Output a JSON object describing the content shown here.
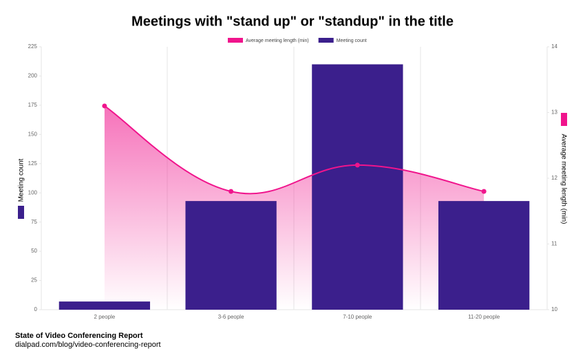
{
  "chart_data": {
    "type": "bar",
    "title": "Meetings with \"stand up\" or \"standup\" in the title",
    "categories": [
      "2 people",
      "3-6 people",
      "7-10 people",
      "11-20 people"
    ],
    "series": [
      {
        "name": "Average meeting length (min)",
        "type": "line",
        "axis": "y2",
        "color": "#f0148c",
        "values": [
          13.1,
          11.8,
          12.2,
          11.8
        ]
      },
      {
        "name": "Meeting count",
        "type": "bar",
        "color": "#3b1f8c",
        "values": [
          7,
          93,
          210,
          93
        ]
      }
    ],
    "y_label": "Meeting count",
    "y2_label": "Average meeting length (min)",
    "ylim": [
      0,
      225
    ],
    "yticks": [
      0,
      25,
      50,
      75,
      100,
      125,
      150,
      175,
      200,
      225
    ],
    "y2lim": [
      10,
      14
    ],
    "y2ticks": [
      10,
      11,
      12,
      13,
      14
    ]
  },
  "footer": {
    "title": "State of Video Conferencing Report",
    "url": "dialpad.com/blog/video-conferencing-report"
  }
}
